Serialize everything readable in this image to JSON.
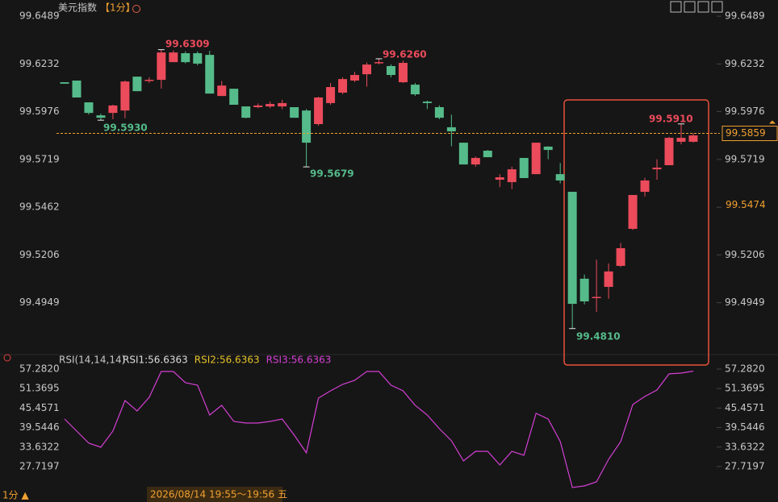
{
  "chart_data": [
    {
      "type": "candlestick",
      "title": "美元指数",
      "interval": "【1分】",
      "up_color": "#eb4b5b",
      "down_color": "#55bb8a",
      "ylim": [
        99.4692,
        99.6524
      ],
      "yticks": [
        99.6489,
        99.6232,
        99.5976,
        99.5719,
        99.5462,
        99.5206,
        99.4949
      ],
      "last_price": 99.5859,
      "marker_price": 99.5474,
      "annotations": [
        "99.6309",
        "99.5930",
        "99.5679",
        "99.6260",
        "99.5910",
        "99.4810"
      ],
      "candles": [
        [
          99.6134,
          99.6134,
          99.6126,
          99.6126
        ],
        [
          99.6143,
          99.6143,
          99.6052,
          99.6052
        ],
        [
          99.6026,
          99.6026,
          99.596,
          99.5969
        ],
        [
          99.5956,
          99.5965,
          99.593,
          99.5943
        ],
        [
          99.5969,
          99.6013,
          99.5935,
          99.6009
        ],
        [
          99.5982,
          99.6143,
          99.594,
          99.6138
        ],
        [
          99.6164,
          99.6164,
          99.6086,
          99.6086
        ],
        [
          99.6143,
          99.616,
          99.613,
          99.6147
        ],
        [
          99.6147,
          99.6309,
          99.61,
          99.6294
        ],
        [
          99.6242,
          99.6305,
          99.6242,
          99.6294
        ],
        [
          99.629,
          99.63,
          99.6235,
          99.6242
        ],
        [
          99.629,
          99.63,
          99.6225,
          99.6234
        ],
        [
          99.6281,
          99.6303,
          99.6073,
          99.6073
        ],
        [
          99.606,
          99.614,
          99.606,
          99.6116
        ],
        [
          99.6099,
          99.6099,
          99.6013,
          99.6013
        ],
        [
          99.6004,
          99.6004,
          99.594,
          99.5943
        ],
        [
          99.6,
          99.602,
          99.5995,
          99.6009
        ],
        [
          99.6004,
          99.603,
          99.5995,
          99.6017
        ],
        [
          99.6004,
          99.604,
          99.599,
          99.6022
        ],
        [
          99.6,
          99.6,
          99.5943,
          99.5943
        ],
        [
          99.5982,
          99.599,
          99.5679,
          99.5809
        ],
        [
          99.5909,
          99.6056,
          99.59,
          99.6052
        ],
        [
          99.6022,
          99.613,
          99.6013,
          99.6108
        ],
        [
          99.6078,
          99.616,
          99.607,
          99.6151
        ],
        [
          99.6143,
          99.619,
          99.6135,
          99.6173
        ],
        [
          99.6177,
          99.624,
          99.611,
          99.6229
        ],
        [
          99.624,
          99.626,
          99.623,
          99.6242
        ],
        [
          99.6221,
          99.623,
          99.616,
          99.6173
        ],
        [
          99.6134,
          99.625,
          99.613,
          99.6238
        ],
        [
          99.6121,
          99.613,
          99.606,
          99.6069
        ],
        [
          99.603,
          99.6035,
          99.599,
          99.6022
        ],
        [
          99.6,
          99.601,
          99.5935,
          99.5943
        ],
        [
          99.5892,
          99.596,
          99.579,
          99.587
        ],
        [
          99.5809,
          99.5809,
          99.5692,
          99.5692
        ],
        [
          99.5692,
          99.5735,
          99.568,
          99.5727
        ],
        [
          99.5766,
          99.577,
          99.5731,
          99.5731
        ],
        [
          99.561,
          99.564,
          99.557,
          99.5623
        ],
        [
          99.5597,
          99.568,
          99.556,
          99.5666
        ],
        [
          99.5727,
          99.5727,
          99.5619,
          99.5619
        ],
        [
          99.564,
          99.5809,
          99.564,
          99.5809
        ],
        [
          99.5788,
          99.579,
          99.572,
          99.577
        ],
        [
          99.564,
          99.57,
          99.559,
          99.5606
        ],
        [
          99.5545,
          99.5545,
          99.481,
          99.4943
        ],
        [
          99.5078,
          99.51,
          99.494,
          99.4956
        ],
        [
          99.4975,
          99.518,
          99.49,
          99.498
        ],
        [
          99.5034,
          99.516,
          99.497,
          99.5117
        ],
        [
          99.5147,
          99.527,
          99.514,
          99.5242
        ],
        [
          99.5346,
          99.5528,
          99.534,
          99.5528
        ],
        [
          99.5545,
          99.562,
          99.552,
          99.5606
        ],
        [
          99.5666,
          99.572,
          99.561,
          99.5675
        ],
        [
          99.5688,
          99.584,
          99.5688,
          99.5835
        ],
        [
          99.5814,
          99.591,
          99.58,
          99.5835
        ],
        [
          99.5814,
          99.586,
          99.581,
          99.5848
        ]
      ]
    },
    {
      "type": "line",
      "label": "RSI(14,14,14)",
      "indicators": [
        {
          "name": "RSI1:56.6363",
          "color": "#dddddd"
        },
        {
          "name": "RSI2:56.6363",
          "color": "#e6c229"
        }
      ],
      "series": [
        {
          "name": "RSI3:56.6363",
          "color": "#d43fd4",
          "values": [
            42.13,
            38.47,
            34.81,
            33.58,
            38.47,
            47.75,
            44.58,
            48.73,
            56.55,
            56.55,
            53.13,
            52.4,
            43.36,
            46.29,
            41.4,
            40.91,
            40.91,
            41.4,
            42.13,
            37.25,
            31.87,
            48.49,
            50.69,
            52.64,
            53.86,
            56.55,
            56.55,
            52.4,
            50.69,
            46.29,
            43.36,
            39.2,
            35.54,
            29.43,
            32.35,
            32.35,
            28.21,
            32.35,
            31.14,
            43.85,
            42.13,
            35.3,
            21.37,
            21.86,
            23.08,
            29.92,
            35.3,
            46.53,
            48.98,
            50.93,
            55.82,
            56.06,
            56.64
          ]
        }
      ],
      "ylim": [
        20.15,
        60.46
      ],
      "yticks": [
        {
          "value": 57.282,
          "label": "57.2820"
        },
        {
          "value": 51.3695,
          "label": "51.3695"
        },
        {
          "value": 45.4571,
          "label": "45.4571"
        },
        {
          "value": 39.5446,
          "label": "39.5446"
        },
        {
          "value": 33.6322,
          "label": "33.6322"
        },
        {
          "value": 27.7197,
          "label": "27.7197"
        }
      ]
    }
  ],
  "footer": {
    "interval_label": "1分 ▲",
    "time_range": "2026/08/14 19:55～19:56 五"
  }
}
